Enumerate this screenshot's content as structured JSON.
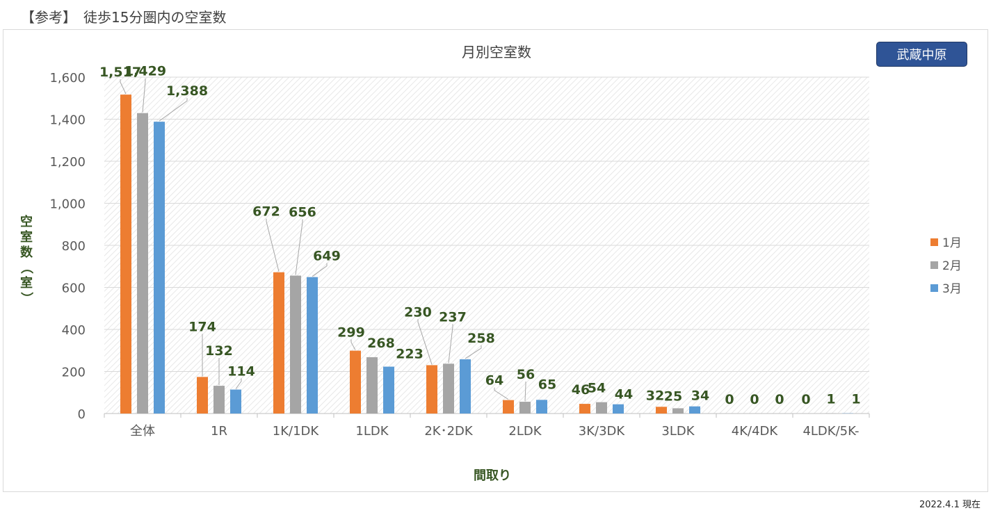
{
  "page": {
    "heading": "【参考】　徒歩15分圏内の空室数",
    "station": "武蔵中原",
    "as_of": "2022.4.1 現在"
  },
  "colors": {
    "series_1": "#ed7d31",
    "series_2": "#a5a5a5",
    "series_3": "#5b9bd5",
    "label_text": "#375623",
    "axis_text": "#595959",
    "badge_bg": "#2f5496"
  },
  "chart_data": {
    "type": "bar",
    "title": "月別空室数",
    "xlabel": "間取り",
    "ylabel": "空室数（室）",
    "ylim": [
      0,
      1600
    ],
    "yticks": [
      0,
      200,
      400,
      600,
      800,
      1000,
      1200,
      1400,
      1600
    ],
    "grid": true,
    "legend_position": "right",
    "categories": [
      "全体",
      "1R",
      "1K/1DK",
      "1LDK",
      "2K･2DK",
      "2LDK",
      "3K/3DK",
      "3LDK",
      "4K/4DK",
      "4LDK/5K-"
    ],
    "series": [
      {
        "name": "1月",
        "values": [
          1517,
          174,
          672,
          299,
          230,
          64,
          46,
          32,
          0,
          0
        ]
      },
      {
        "name": "2月",
        "values": [
          1429,
          132,
          656,
          268,
          237,
          56,
          54,
          25,
          0,
          1
        ]
      },
      {
        "name": "3月",
        "values": [
          1388,
          114,
          649,
          223,
          258,
          65,
          44,
          34,
          0,
          1
        ]
      }
    ]
  }
}
